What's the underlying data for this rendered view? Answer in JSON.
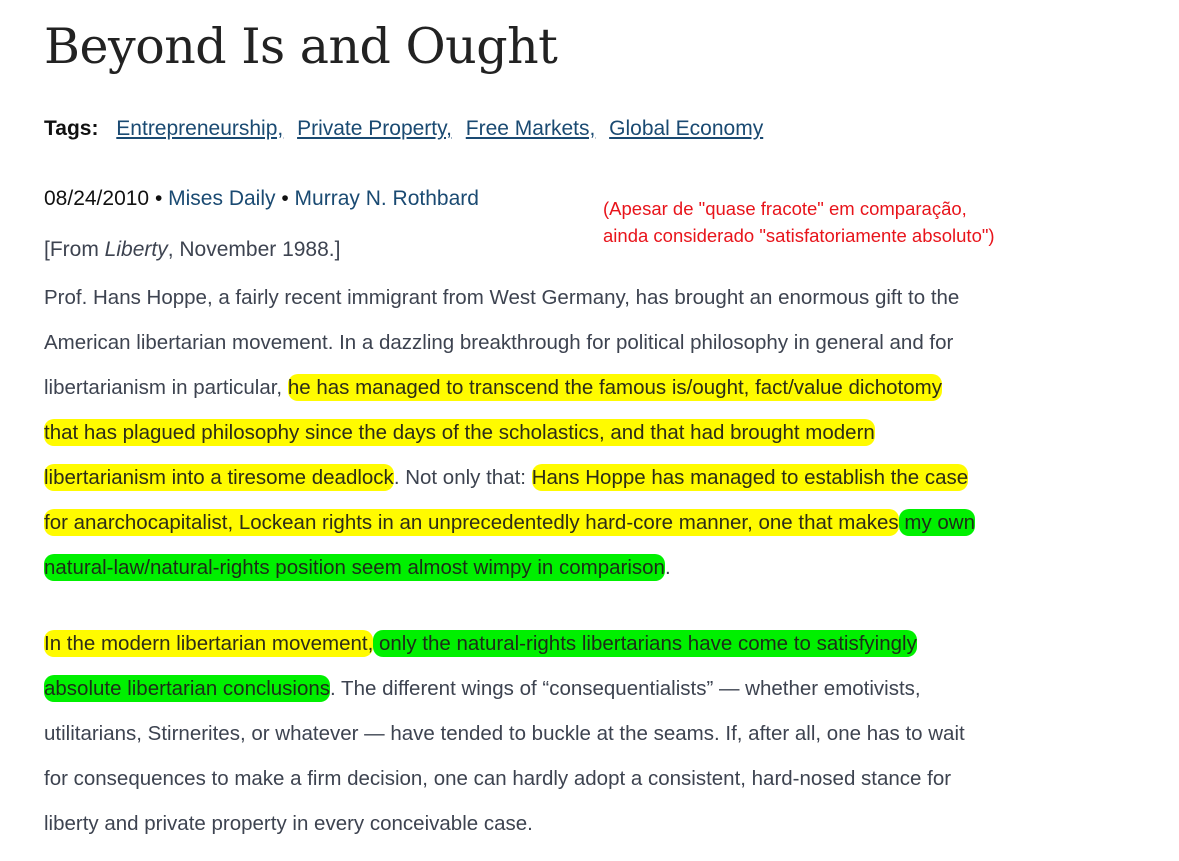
{
  "title": "Beyond Is and Ought",
  "tags": {
    "label": "Tags:",
    "items": [
      "Entrepreneurship,",
      "Private Property,",
      "Free Markets,",
      "Global Economy"
    ]
  },
  "meta": {
    "date": "08/24/2010",
    "separator": " • ",
    "publication": "Mises Daily",
    "author": "Murray N. Rothbard"
  },
  "source": {
    "prefix": "[From ",
    "italic": "Liberty",
    "suffix": ", November 1988.]"
  },
  "annotation": {
    "lines": [
      "(Apesar de \"quase fracote\" em comparação,",
      "ainda considerado \"satisfatoriamente absoluto\")"
    ],
    "color": "#e8141b"
  },
  "highlight_colors": {
    "yellow": "#fffb00",
    "green": "#00f000"
  },
  "paragraphs": [
    [
      [
        {
          "t": "Prof. Hans Hoppe, a fairly recent immigrant from West Germany, has brought an enormous gift to the"
        }
      ],
      [
        {
          "t": "American libertarian movement. In a dazzling breakthrough for political philosophy in general and for"
        }
      ],
      [
        {
          "t": "libertarianism in particular, "
        },
        {
          "t": "he has managed to transcend the famous is/ought, fact/value dichotomy",
          "hl": "y"
        }
      ],
      [
        {
          "t": "that has plagued philosophy since the days of the scholastics, and that had brought modern",
          "hl": "y"
        }
      ],
      [
        {
          "t": "libertarianism into a tiresome deadlock",
          "hl": "y"
        },
        {
          "t": ". Not only that: "
        },
        {
          "t": "Hans Hoppe has managed to establish the case",
          "hl": "y"
        }
      ],
      [
        {
          "t": "for anarchocapitalist, Lockean rights in an unprecedentedly hard-core manner, one that makes",
          "hl": "y"
        },
        {
          "t": " my own",
          "hl": "g"
        }
      ],
      [
        {
          "t": "natural-law/natural-rights position seem almost wimpy in comparison",
          "hl": "g"
        },
        {
          "t": "."
        }
      ]
    ],
    [
      [
        {
          "t": "In the modern libertarian movement,",
          "hl": "y"
        },
        {
          "t": " only the natural-rights libertarians have come to satisfyingly",
          "hl": "g"
        }
      ],
      [
        {
          "t": "absolute libertarian conclusions",
          "hl": "g"
        },
        {
          "t": ". The different wings of “consequentialists” — whether emotivists,"
        }
      ],
      [
        {
          "t": "utilitarians, Stirnerites, or whatever — have tended to buckle at the seams. If, after all, one has to wait"
        }
      ],
      [
        {
          "t": "for consequences to make a firm decision, one can hardly adopt a consistent, hard-nosed stance for"
        }
      ],
      [
        {
          "t": "liberty and private property in every conceivable case."
        }
      ]
    ]
  ]
}
